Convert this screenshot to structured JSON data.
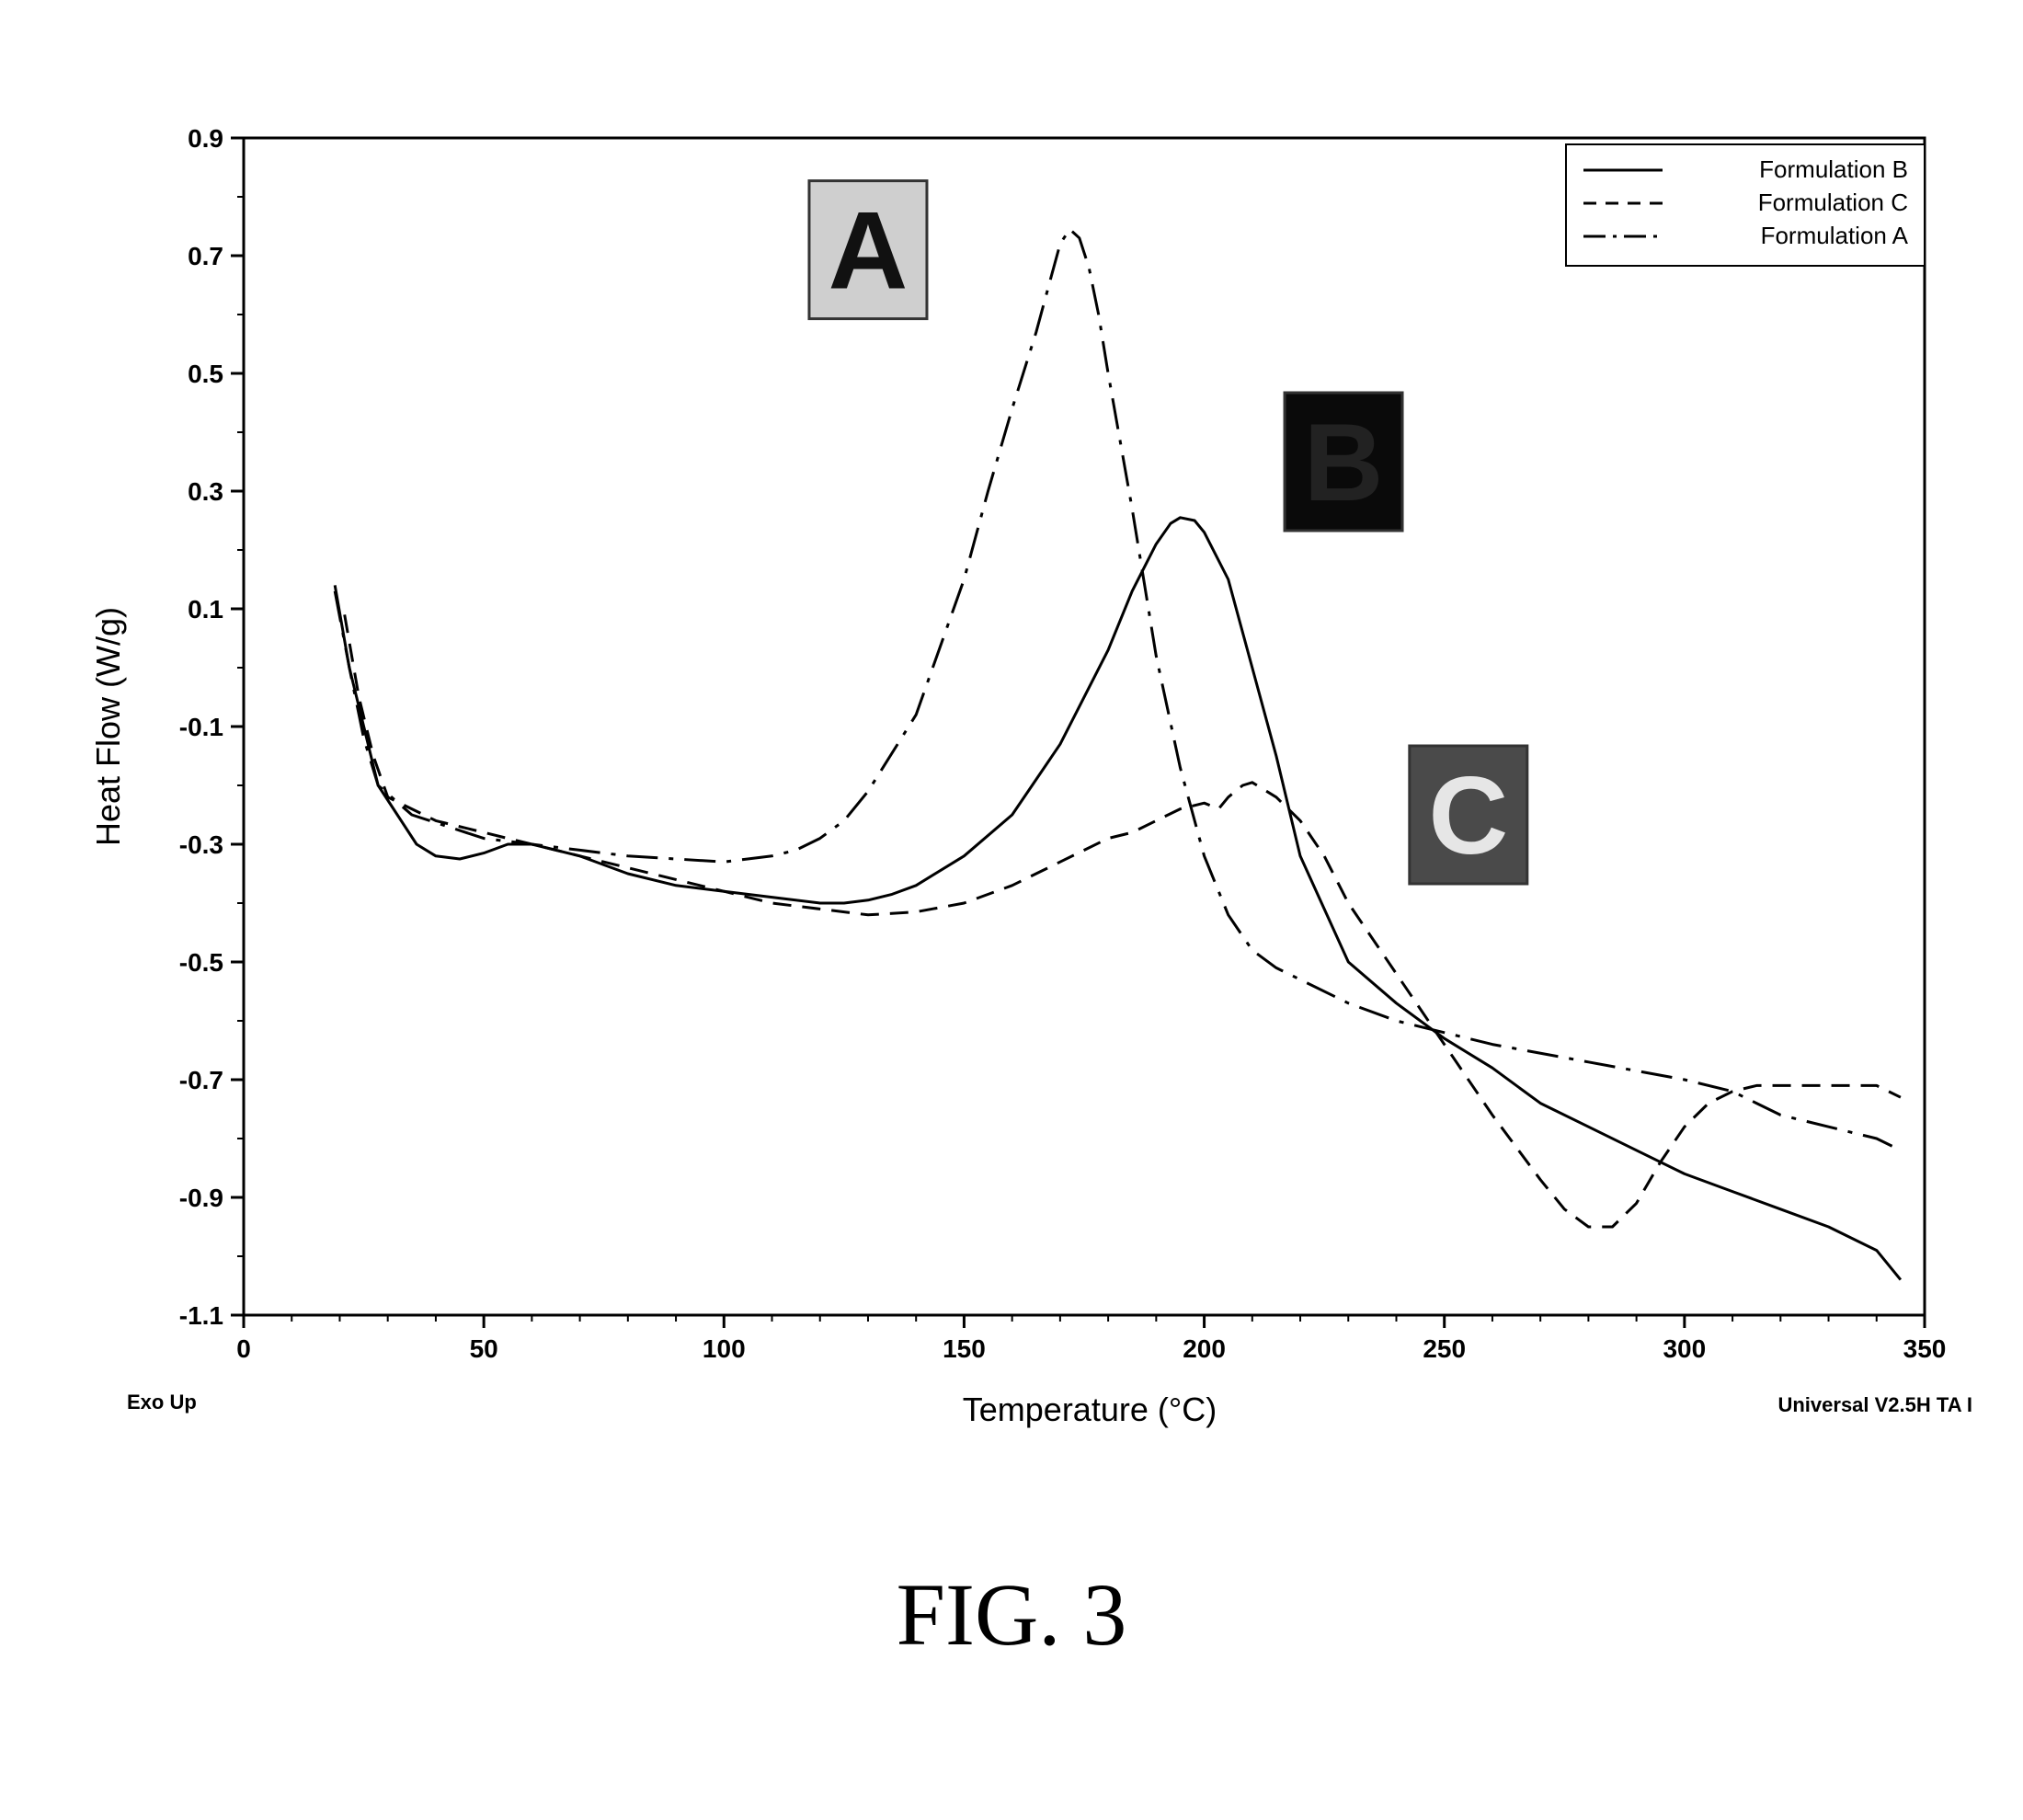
{
  "chart_data": {
    "type": "line",
    "xlabel": "Temperature (°C)",
    "ylabel": "Heat Flow (W/g)",
    "xlim": [
      0,
      350
    ],
    "ylim": [
      -1.1,
      0.9
    ],
    "x_ticks": [
      "0",
      "50",
      "100",
      "150",
      "200",
      "250",
      "300",
      "350"
    ],
    "y_ticks": [
      "0.9",
      "0.7",
      "0.5",
      "0.3",
      "0.1",
      "-0.1",
      "-0.3",
      "-0.5",
      "-0.7",
      "-0.9",
      "-1.1"
    ],
    "grid": false,
    "legend_position": "top-right",
    "left_note": "Exo Up",
    "right_note": "Universal V2.5H TA I",
    "series": [
      {
        "name": "Formulation B",
        "style": "solid",
        "x": [
          19,
          22,
          25,
          28,
          32,
          36,
          40,
          45,
          50,
          55,
          60,
          70,
          80,
          90,
          100,
          110,
          120,
          125,
          130,
          135,
          140,
          150,
          160,
          170,
          180,
          185,
          190,
          193,
          195,
          198,
          200,
          205,
          210,
          215,
          220,
          230,
          240,
          250,
          260,
          270,
          280,
          290,
          300,
          310,
          320,
          330,
          340,
          345
        ],
        "y": [
          0.14,
          0.0,
          -0.1,
          -0.2,
          -0.25,
          -0.3,
          -0.32,
          -0.325,
          -0.315,
          -0.3,
          -0.3,
          -0.32,
          -0.35,
          -0.37,
          -0.38,
          -0.39,
          -0.4,
          -0.4,
          -0.395,
          -0.385,
          -0.37,
          -0.32,
          -0.25,
          -0.13,
          0.03,
          0.13,
          0.21,
          0.245,
          0.255,
          0.25,
          0.23,
          0.15,
          0.0,
          -0.15,
          -0.32,
          -0.5,
          -0.57,
          -0.63,
          -0.68,
          -0.74,
          -0.78,
          -0.82,
          -0.86,
          -0.89,
          -0.92,
          -0.95,
          -0.99,
          -1.04
        ]
      },
      {
        "name": "Formulation C",
        "style": "dashed",
        "x": [
          21,
          24,
          27,
          30,
          40,
          50,
          60,
          70,
          80,
          90,
          100,
          110,
          120,
          130,
          140,
          150,
          160,
          170,
          180,
          185,
          190,
          195,
          200,
          203,
          205,
          208,
          210,
          215,
          220,
          225,
          230,
          240,
          250,
          260,
          270,
          275,
          280,
          285,
          290,
          295,
          300,
          305,
          310,
          315,
          320,
          330,
          340,
          345
        ],
        "y": [
          0.09,
          -0.05,
          -0.15,
          -0.22,
          -0.26,
          -0.28,
          -0.3,
          -0.32,
          -0.34,
          -0.36,
          -0.38,
          -0.4,
          -0.41,
          -0.42,
          -0.415,
          -0.4,
          -0.37,
          -0.33,
          -0.29,
          -0.28,
          -0.26,
          -0.24,
          -0.23,
          -0.24,
          -0.22,
          -0.2,
          -0.195,
          -0.22,
          -0.26,
          -0.32,
          -0.4,
          -0.52,
          -0.64,
          -0.76,
          -0.87,
          -0.92,
          -0.95,
          -0.95,
          -0.91,
          -0.84,
          -0.78,
          -0.74,
          -0.72,
          -0.71,
          -0.71,
          -0.71,
          -0.71,
          -0.73
        ]
      },
      {
        "name": "Formulation A",
        "style": "dash-dot",
        "x": [
          19,
          22,
          25,
          28,
          35,
          50,
          60,
          70,
          80,
          90,
          100,
          110,
          115,
          120,
          125,
          130,
          140,
          150,
          155,
          160,
          165,
          168,
          170,
          172,
          174,
          176,
          178,
          180,
          185,
          190,
          195,
          200,
          205,
          210,
          215,
          220,
          230,
          240,
          250,
          260,
          280,
          300,
          310,
          315,
          320,
          330,
          340,
          345
        ],
        "y": [
          0.13,
          0.0,
          -0.12,
          -0.2,
          -0.25,
          -0.29,
          -0.3,
          -0.31,
          -0.32,
          -0.325,
          -0.33,
          -0.32,
          -0.31,
          -0.29,
          -0.26,
          -0.21,
          -0.08,
          0.15,
          0.3,
          0.44,
          0.57,
          0.66,
          0.72,
          0.745,
          0.73,
          0.68,
          0.6,
          0.5,
          0.27,
          0.02,
          -0.17,
          -0.32,
          -0.42,
          -0.48,
          -0.51,
          -0.53,
          -0.57,
          -0.6,
          -0.62,
          -0.64,
          -0.67,
          -0.7,
          -0.72,
          -0.74,
          -0.76,
          -0.78,
          -0.8,
          -0.82
        ]
      }
    ],
    "annotations": [
      {
        "label": "A",
        "x": 130,
        "y": 0.71
      },
      {
        "label": "B",
        "x": 229,
        "y": 0.35
      },
      {
        "label": "C",
        "x": 255,
        "y": -0.25
      }
    ]
  },
  "figure": {
    "caption": "FIG. 3"
  }
}
